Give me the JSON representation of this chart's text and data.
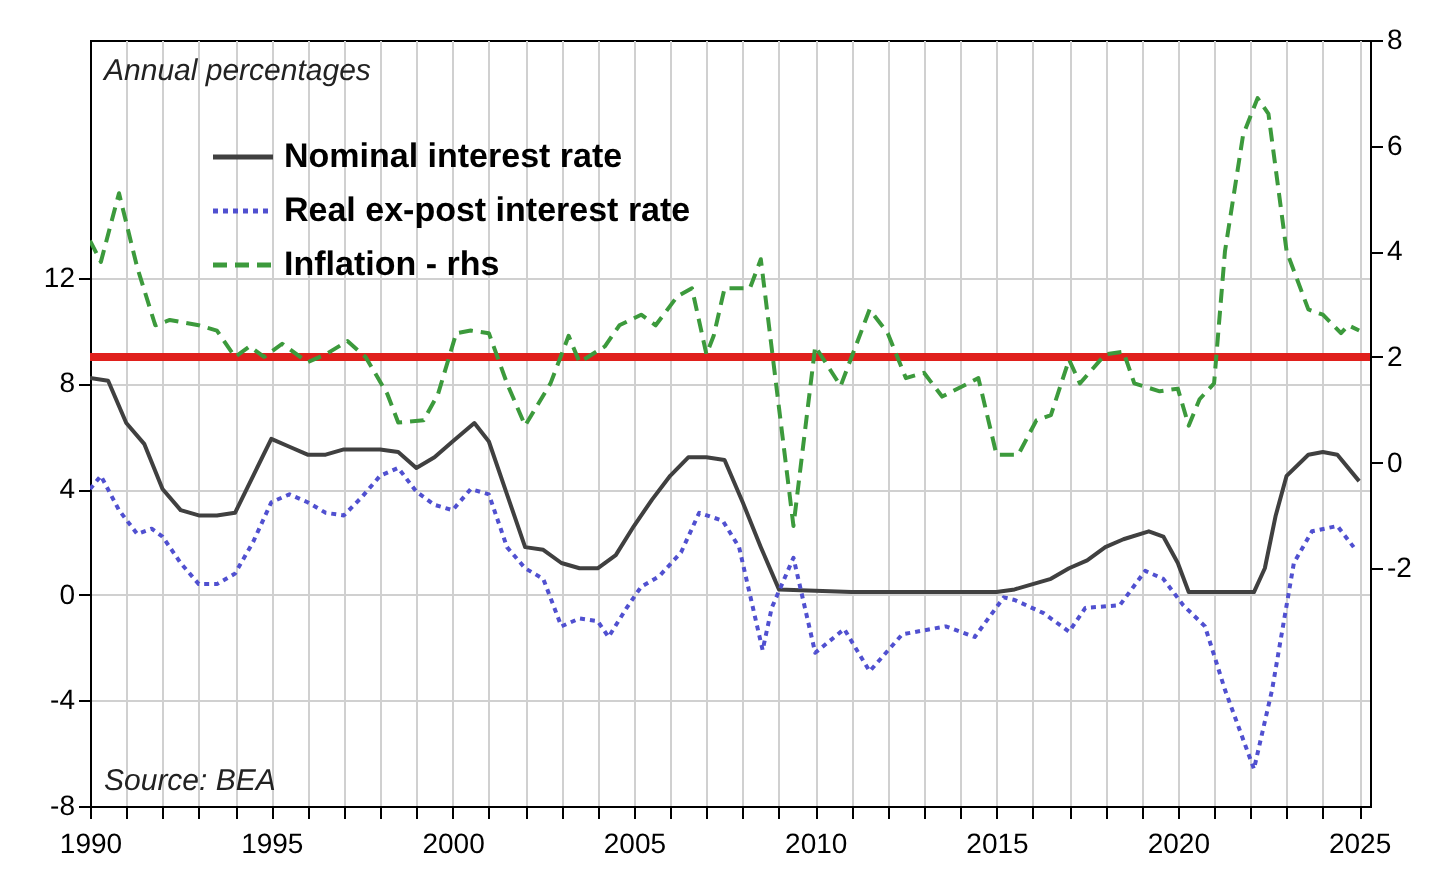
{
  "chart_data": {
    "type": "line",
    "annotations": [
      "Annual percentages",
      "Source: BEA"
    ],
    "xlim": [
      1990,
      2025.3
    ],
    "xticks": [
      1990,
      {
        "value": 1991,
        "label": null
      },
      {
        "value": 1992,
        "label": null
      },
      {
        "value": 1993,
        "label": null
      },
      {
        "value": 1994,
        "label": null
      },
      1995,
      {
        "value": 1996,
        "label": null
      },
      {
        "value": 1997,
        "label": null
      },
      {
        "value": 1998,
        "label": null
      },
      {
        "value": 1999,
        "label": null
      },
      2000,
      {
        "value": 2001,
        "label": null
      },
      {
        "value": 2002,
        "label": null
      },
      {
        "value": 2003,
        "label": null
      },
      {
        "value": 2004,
        "label": null
      },
      2005,
      {
        "value": 2006,
        "label": null
      },
      {
        "value": 2007,
        "label": null
      },
      {
        "value": 2008,
        "label": null
      },
      {
        "value": 2009,
        "label": null
      },
      2010,
      {
        "value": 2011,
        "label": null
      },
      {
        "value": 2012,
        "label": null
      },
      {
        "value": 2013,
        "label": null
      },
      {
        "value": 2014,
        "label": null
      },
      2015,
      {
        "value": 2016,
        "label": null
      },
      {
        "value": 2017,
        "label": null
      },
      {
        "value": 2018,
        "label": null
      },
      {
        "value": 2019,
        "label": null
      },
      2020,
      {
        "value": 2021,
        "label": null
      },
      {
        "value": 2022,
        "label": null
      },
      {
        "value": 2023,
        "label": null
      },
      {
        "value": 2024,
        "label": null
      },
      2025
    ],
    "ylim": [
      -8,
      21
    ],
    "yticks": [
      -8,
      -4,
      0,
      4,
      8,
      12
    ],
    "y2lim": [
      -6.5,
      8
    ],
    "y2ticks": [
      -2,
      0,
      2,
      4,
      6,
      8
    ],
    "grid": true,
    "legend": "top left",
    "ref_lines": [
      {
        "axis": "y2",
        "value": 2,
        "color": "#e0201c",
        "line_style": "solid"
      }
    ],
    "series": [
      {
        "name": "Nominal interest rate",
        "color": "#404040",
        "line_style": "solid",
        "x": [
          1990,
          1990.5,
          1991,
          1991.5,
          1992,
          1992.5,
          1993,
          1993.5,
          1994,
          1994.5,
          1995,
          1995.5,
          1996,
          1996.5,
          1997,
          1997.5,
          1998,
          1998.5,
          1999,
          1999.5,
          2000,
          2000.6,
          2001,
          2001.5,
          2002,
          2002.5,
          2003,
          2003.5,
          2004,
          2004.5,
          2005,
          2005.5,
          2006,
          2006.5,
          2007,
          2007.5,
          2008,
          2008.5,
          2009,
          2010,
          2011,
          2012,
          2013,
          2014,
          2015,
          2015.5,
          2016,
          2016.5,
          2017,
          2017.5,
          2018,
          2018.5,
          2019.2,
          2019.6,
          2020,
          2020.3,
          2021,
          2022.1,
          2022.4,
          2022.7,
          2023,
          2023.6,
          2024,
          2024.4,
          2025
        ],
        "values": [
          8.2,
          8.1,
          6.5,
          5.7,
          4.0,
          3.2,
          3.0,
          3.0,
          3.1,
          4.5,
          5.9,
          5.6,
          5.3,
          5.3,
          5.5,
          5.5,
          5.5,
          5.4,
          4.8,
          5.2,
          5.8,
          6.5,
          5.8,
          3.8,
          1.8,
          1.7,
          1.2,
          1.0,
          1.0,
          1.5,
          2.6,
          3.6,
          4.5,
          5.2,
          5.2,
          5.1,
          3.5,
          1.8,
          0.2,
          0.15,
          0.1,
          0.1,
          0.1,
          0.1,
          0.1,
          0.2,
          0.4,
          0.6,
          1.0,
          1.3,
          1.8,
          2.1,
          2.4,
          2.2,
          1.2,
          0.1,
          0.1,
          0.1,
          1.0,
          3.0,
          4.5,
          5.3,
          5.4,
          5.3,
          4.3
        ]
      },
      {
        "name": "Real ex-post interest rate",
        "color": "#5050d0",
        "line_style": "dotted",
        "x": [
          1990,
          1990.3,
          1990.8,
          1991.3,
          1991.7,
          1992,
          1992.5,
          1993,
          1993.5,
          1994,
          1994.5,
          1995,
          1995.5,
          1996,
          1996.5,
          1997,
          1997.5,
          1998,
          1998.5,
          1999,
          1999.5,
          2000,
          2000.5,
          2001,
          2001.5,
          2002,
          2002.5,
          2003,
          2003.5,
          2004,
          2004.3,
          2004.8,
          2005.2,
          2005.7,
          2006.3,
          2006.8,
          2007.45,
          2007.9,
          2008.55,
          2008.8,
          2009.4,
          2010,
          2010.8,
          2011.5,
          2012.4,
          2013.6,
          2014.4,
          2015.2,
          2015.5,
          2016.3,
          2017,
          2017.45,
          2018.4,
          2019.1,
          2019.6,
          2020.15,
          2020.75,
          2021.3,
          2022.1,
          2022.6,
          2023.2,
          2023.7,
          2024.4,
          2024.85
        ],
        "values": [
          4.0,
          4.5,
          3.2,
          2.3,
          2.5,
          2.2,
          1.2,
          0.4,
          0.4,
          0.8,
          2.0,
          3.5,
          3.8,
          3.5,
          3.1,
          3.0,
          3.7,
          4.5,
          4.8,
          3.9,
          3.4,
          3.2,
          4.0,
          3.8,
          1.8,
          1.0,
          0.6,
          -1.2,
          -0.9,
          -1.0,
          -1.6,
          -0.5,
          0.3,
          0.7,
          1.6,
          3.1,
          2.8,
          1.8,
          -2.1,
          -0.5,
          1.4,
          -2.2,
          -1.3,
          -2.9,
          -1.5,
          -1.2,
          -1.6,
          -0.1,
          -0.2,
          -0.7,
          -1.4,
          -0.5,
          -0.4,
          0.9,
          0.6,
          -0.4,
          -1.2,
          -3.6,
          -6.6,
          -3.6,
          1.2,
          2.4,
          2.6,
          1.8
        ]
      },
      {
        "name": "Inflation - rhs",
        "color": "#3c9a3c",
        "line_style": "dashed",
        "axis": "y2",
        "x": [
          1990,
          1990.3,
          1990.8,
          1991.3,
          1991.8,
          1992.2,
          1993,
          1993.5,
          1994,
          1994.4,
          1994.8,
          1995.3,
          1996,
          1996.5,
          1997.1,
          1997.6,
          1998.2,
          1998.5,
          1999.2,
          1999.6,
          2000.1,
          2000.5,
          2001,
          2001.5,
          2002,
          2002.7,
          2003.2,
          2003.5,
          2004.2,
          2004.6,
          2005.2,
          2005.6,
          2006.2,
          2006.6,
          2007,
          2007.2,
          2007.5,
          2008.2,
          2008.5,
          2009.4,
          2010,
          2010.7,
          2011.5,
          2012,
          2012.5,
          2013,
          2013.5,
          2014.5,
          2015,
          2015.6,
          2016.1,
          2016.5,
          2017,
          2017.3,
          2018,
          2018.5,
          2018.8,
          2019.5,
          2020,
          2020.3,
          2020.6,
          2021,
          2021.3,
          2021.8,
          2022.2,
          2022.5,
          2023,
          2023.6,
          2024,
          2024.5,
          2024.7,
          2025
        ],
        "values": [
          4.2,
          3.8,
          5.1,
          3.7,
          2.6,
          2.7,
          2.6,
          2.5,
          2.0,
          2.2,
          2.0,
          2.25,
          1.9,
          2.05,
          2.3,
          2.0,
          1.3,
          0.76,
          0.8,
          1.3,
          2.45,
          2.5,
          2.45,
          1.5,
          0.7,
          1.5,
          2.4,
          1.9,
          2.2,
          2.6,
          2.8,
          2.6,
          3.15,
          3.3,
          2.05,
          2.4,
          3.3,
          3.3,
          3.85,
          -1.2,
          2.2,
          1.45,
          2.9,
          2.45,
          1.6,
          1.7,
          1.25,
          1.6,
          0.15,
          0.15,
          0.8,
          0.9,
          1.95,
          1.5,
          2.05,
          2.1,
          1.5,
          1.35,
          1.4,
          0.7,
          1.2,
          1.5,
          4.0,
          6.2,
          6.9,
          6.6,
          4.0,
          2.9,
          2.8,
          2.45,
          2.6,
          2.5
        ]
      }
    ]
  }
}
